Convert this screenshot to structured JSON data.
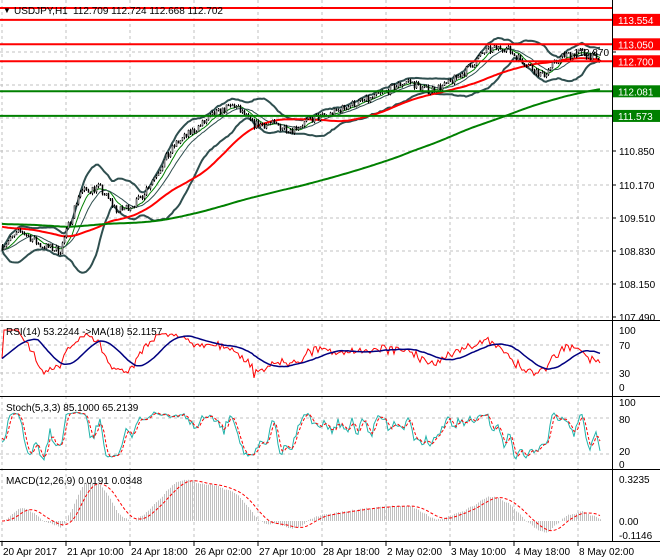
{
  "header": {
    "symbol": "USDJPY,H1",
    "ohlc": "112.709 112.724 112.668 112.702"
  },
  "chart_data": {
    "type": "candlestick",
    "title": "USDJPY,H1",
    "ylim": [
      107.49,
      113.7
    ],
    "price_ticks": [
      "112.870",
      "110.850",
      "110.170",
      "109.510",
      "108.830",
      "108.150",
      "107.490"
    ],
    "x_ticks": [
      "20 Apr 2017",
      "21 Apr 10:00",
      "24 Apr 18:00",
      "26 Apr 02:00",
      "27 Apr 10:00",
      "28 Apr 18:00",
      "2 May 02:00",
      "3 May 10:00",
      "4 May 18:00",
      "8 May 02:00"
    ],
    "close_path": [
      108.9,
      109.2,
      108.9,
      108.8,
      110.0,
      110.1,
      109.6,
      109.8,
      110.4,
      111.0,
      111.3,
      111.6,
      111.8,
      111.4,
      111.4,
      111.3,
      111.5,
      111.6,
      111.8,
      111.9,
      112.1,
      112.3,
      112.1,
      112.2,
      112.5,
      112.9,
      113.0,
      112.7,
      112.4,
      112.8,
      112.9,
      112.7
    ],
    "levels": [
      {
        "value": "113.554",
        "color": "#ff0000"
      },
      {
        "value": "113.050",
        "color": "#ff0000"
      },
      {
        "value": "112.700",
        "color": "#ff0000"
      },
      {
        "value": "112.081",
        "color": "#008000"
      },
      {
        "value": "111.573",
        "color": "#008000"
      }
    ],
    "rsi": {
      "label": "RSI(14) 53.2244  ->MA(18) 52.1157",
      "ticks": [
        "100",
        "70",
        "30",
        "0"
      ]
    },
    "stoch": {
      "label": "Stoch(5,3,3) 85.1000 65.2139",
      "ticks": [
        "100",
        "80",
        "20",
        "0"
      ]
    },
    "macd": {
      "label": "MACD(12,26,9) 0.0191 0.0348",
      "ticks": [
        "0.3235",
        "0.00",
        "-0.1146"
      ]
    },
    "colors": {
      "bands": "#2f4f4f",
      "ma_fast": "#ff0000",
      "ma_slow": "#008000",
      "rsi": "#ff0000",
      "rsi_ma": "#000080",
      "stoch_main": "#20b2aa",
      "stoch_signal": "#ff0000",
      "macd_hist": "#c0c0c0",
      "macd_signal": "#ff0000"
    }
  }
}
